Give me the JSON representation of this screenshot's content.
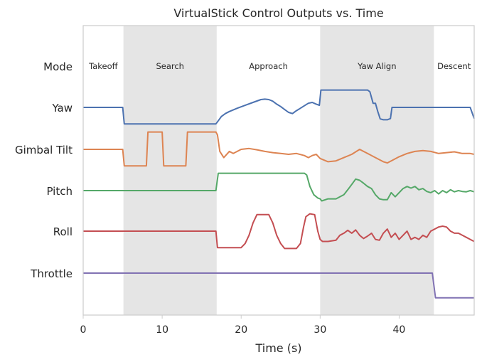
{
  "chart_data": {
    "type": "line",
    "title": "VirtualStick Control Outputs vs. Time",
    "xlabel": "Time (s)",
    "ylabel": "",
    "xlim": [
      0,
      49.5
    ],
    "xticks": [
      0,
      10,
      20,
      30,
      40
    ],
    "grid": false,
    "legend": "none",
    "row_labels": [
      "Mode",
      "Yaw",
      "Gimbal Tilt",
      "Pitch",
      "Roll",
      "Throttle"
    ],
    "phases": [
      {
        "label": "Takeoff",
        "start": 0,
        "end": 5.1,
        "shaded": false
      },
      {
        "label": "Search",
        "start": 5.1,
        "end": 16.9,
        "shaded": true
      },
      {
        "label": "Approach",
        "start": 16.9,
        "end": 30.0,
        "shaded": false
      },
      {
        "label": "Yaw Align",
        "start": 30.0,
        "end": 44.4,
        "shaded": true
      },
      {
        "label": "Descent",
        "start": 44.4,
        "end": 49.5,
        "shaded": false
      }
    ],
    "series": [
      {
        "name": "Yaw",
        "color": "#4c72b0",
        "baseline": 0,
        "x": [
          0,
          5.0,
          5.2,
          16.8,
          17.0,
          17.5,
          18.0,
          18.5,
          19.5,
          20.5,
          21.5,
          22.5,
          23.0,
          23.5,
          24.0,
          24.5,
          25.0,
          25.5,
          26.0,
          26.5,
          27.0,
          27.5,
          28.0,
          28.5,
          29.0,
          29.5,
          29.9,
          30.1,
          36.0,
          36.3,
          36.7,
          37.0,
          37.3,
          37.6,
          38.0,
          38.5,
          38.9,
          39.1,
          49.0,
          49.5
        ],
        "y": [
          0,
          0,
          -0.4,
          -0.4,
          -0.35,
          -0.22,
          -0.15,
          -0.1,
          -0.02,
          0.05,
          0.12,
          0.19,
          0.2,
          0.19,
          0.15,
          0.08,
          0.02,
          -0.05,
          -0.12,
          -0.15,
          -0.08,
          -0.02,
          0.04,
          0.1,
          0.12,
          0.08,
          0.05,
          0.42,
          0.42,
          0.38,
          0.1,
          0.1,
          -0.1,
          -0.28,
          -0.3,
          -0.3,
          -0.27,
          0,
          0,
          -0.27
        ]
      },
      {
        "name": "Gimbal Tilt",
        "color": "#dd8452",
        "baseline": 0,
        "x": [
          0,
          5.0,
          5.2,
          8.0,
          8.2,
          10.0,
          10.2,
          13.0,
          13.2,
          16.8,
          17.0,
          17.3,
          17.8,
          18.5,
          19.0,
          20.0,
          21.0,
          22.0,
          23.0,
          24.0,
          25.0,
          26.0,
          27.0,
          28.0,
          28.5,
          29.0,
          29.5,
          30.0,
          31.0,
          32.0,
          33.0,
          34.0,
          35.0,
          36.0,
          37.0,
          38.0,
          38.5,
          39.0,
          40.0,
          41.0,
          42.0,
          43.0,
          44.0,
          45.0,
          46.0,
          47.0,
          48.0,
          49.0,
          49.5
        ],
        "y": [
          0,
          0,
          -0.4,
          -0.4,
          0.42,
          0.42,
          -0.4,
          -0.4,
          0.42,
          0.42,
          0.35,
          -0.05,
          -0.2,
          -0.05,
          -0.1,
          0.0,
          0.02,
          -0.01,
          -0.05,
          -0.08,
          -0.1,
          -0.12,
          -0.1,
          -0.15,
          -0.2,
          -0.15,
          -0.12,
          -0.22,
          -0.3,
          -0.28,
          -0.2,
          -0.12,
          0.0,
          -0.1,
          -0.2,
          -0.3,
          -0.33,
          -0.28,
          -0.18,
          -0.1,
          -0.05,
          -0.03,
          -0.05,
          -0.1,
          -0.08,
          -0.06,
          -0.1,
          -0.1,
          -0.12
        ]
      },
      {
        "name": "Pitch",
        "color": "#55a868",
        "baseline": 0,
        "x": [
          0,
          16.8,
          17.1,
          28.0,
          28.3,
          28.7,
          29.2,
          29.7,
          30.0,
          30.2,
          31.0,
          32.0,
          33.0,
          33.5,
          34.0,
          34.5,
          35.0,
          35.5,
          36.0,
          36.5,
          37.0,
          37.5,
          38.0,
          38.5,
          39.0,
          39.5,
          40.0,
          40.5,
          41.0,
          41.5,
          42.0,
          42.5,
          43.0,
          43.5,
          44.0,
          44.5,
          45.0,
          45.5,
          46.0,
          46.5,
          47.0,
          47.5,
          48.0,
          48.5,
          49.0,
          49.5
        ],
        "y": [
          0,
          0,
          0.42,
          0.42,
          0.38,
          0.1,
          -0.1,
          -0.18,
          -0.2,
          -0.25,
          -0.2,
          -0.2,
          -0.1,
          0.02,
          0.15,
          0.28,
          0.25,
          0.18,
          0.1,
          0.05,
          -0.1,
          -0.2,
          -0.22,
          -0.22,
          -0.05,
          -0.15,
          -0.05,
          0.05,
          0.1,
          0.06,
          0.1,
          0.02,
          0.05,
          -0.02,
          -0.05,
          0.0,
          -0.08,
          0.0,
          -0.05,
          0.02,
          -0.03,
          0.0,
          -0.02,
          -0.03,
          0.0,
          -0.03
        ]
      },
      {
        "name": "Roll",
        "color": "#c44e52",
        "baseline": 0,
        "x": [
          0,
          16.8,
          17.0,
          20.0,
          20.5,
          21.0,
          21.5,
          22.0,
          23.5,
          24.0,
          24.5,
          25.0,
          25.5,
          27.0,
          27.5,
          27.9,
          28.2,
          28.7,
          29.3,
          29.7,
          30.0,
          30.3,
          31.0,
          32.0,
          32.5,
          33.0,
          33.5,
          34.0,
          34.5,
          35.0,
          35.5,
          36.0,
          36.5,
          37.0,
          37.5,
          38.0,
          38.5,
          39.0,
          39.5,
          40.0,
          40.5,
          41.0,
          41.5,
          42.0,
          42.5,
          43.0,
          43.5,
          44.0,
          44.5,
          45.0,
          45.5,
          46.0,
          46.5,
          47.0,
          47.5,
          48.0,
          48.5,
          49.0,
          49.5
        ],
        "y": [
          0,
          0,
          -0.4,
          -0.4,
          -0.3,
          -0.1,
          0.2,
          0.4,
          0.4,
          0.2,
          -0.1,
          -0.3,
          -0.42,
          -0.42,
          -0.3,
          0.1,
          0.35,
          0.42,
          0.4,
          0.0,
          -0.2,
          -0.25,
          -0.25,
          -0.22,
          -0.1,
          -0.05,
          0.02,
          -0.05,
          0.03,
          -0.1,
          -0.18,
          -0.12,
          -0.05,
          -0.2,
          -0.22,
          -0.05,
          0.05,
          -0.15,
          -0.05,
          -0.2,
          -0.1,
          0.0,
          -0.2,
          -0.15,
          -0.2,
          -0.1,
          -0.15,
          0.0,
          0.05,
          0.1,
          0.12,
          0.1,
          0.0,
          -0.05,
          -0.05,
          -0.1,
          -0.15,
          -0.2,
          -0.25
        ]
      },
      {
        "name": "Throttle",
        "color": "#8172b3",
        "baseline": 0,
        "x": [
          0,
          44.2,
          44.6,
          49.5
        ],
        "y": [
          0,
          0,
          -0.6,
          -0.6
        ]
      }
    ]
  }
}
